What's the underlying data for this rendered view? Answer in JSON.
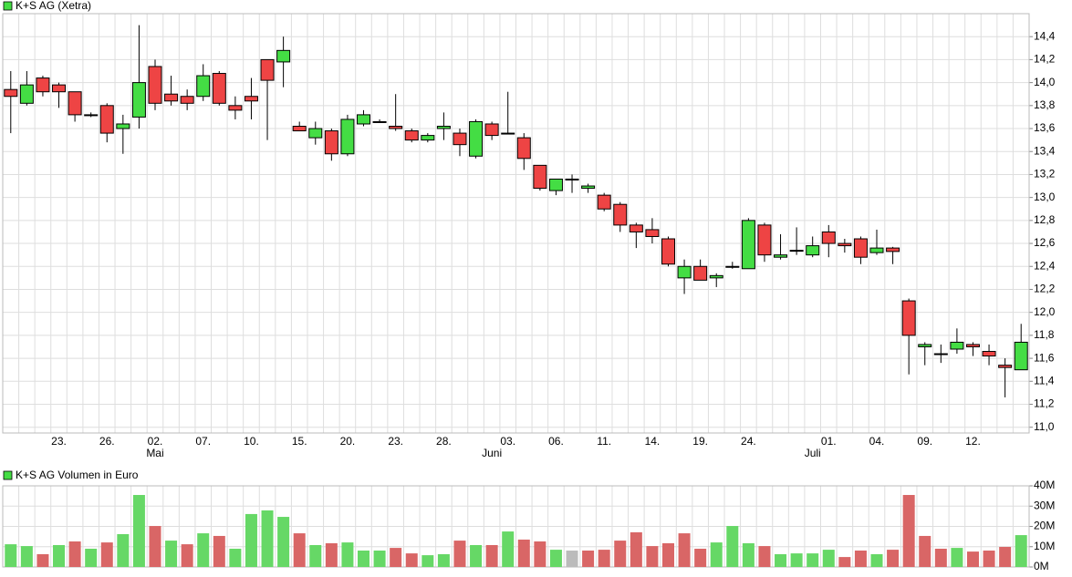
{
  "chart_data": [
    {
      "type": "candlestick",
      "title": "K+S AG (Xetra)",
      "legend_color": "#44dd44",
      "up_color": "#44dd44",
      "down_color": "#ee4444",
      "grid": true,
      "categories": [
        null,
        null,
        null,
        "23.",
        null,
        null,
        "26.",
        null,
        null,
        "02.",
        null,
        null,
        "07.",
        null,
        null,
        "10.",
        null,
        null,
        "15.",
        null,
        null,
        "20.",
        null,
        null,
        "23.",
        null,
        null,
        "28.",
        null,
        null,
        null,
        "03.",
        null,
        null,
        "06.",
        null,
        null,
        "11.",
        null,
        null,
        "14.",
        null,
        null,
        "19.",
        null,
        null,
        "24.",
        null,
        null,
        null,
        null,
        "01.",
        null,
        null,
        "04.",
        null,
        null,
        "09.",
        null,
        null,
        "12.",
        null,
        null,
        null
      ],
      "category_months": [
        null,
        null,
        null,
        null,
        null,
        null,
        null,
        null,
        null,
        "Mai",
        null,
        null,
        null,
        null,
        null,
        null,
        null,
        null,
        null,
        null,
        null,
        null,
        null,
        null,
        null,
        null,
        null,
        null,
        null,
        null,
        "Juni",
        null,
        null,
        null,
        null,
        null,
        null,
        null,
        null,
        null,
        null,
        null,
        null,
        null,
        null,
        null,
        null,
        null,
        null,
        null,
        "Juli",
        null,
        null,
        null,
        null,
        null,
        null,
        null,
        null,
        null,
        null,
        null,
        null,
        null
      ],
      "open": [
        13.94,
        13.82,
        14.04,
        13.98,
        13.92,
        13.72,
        13.8,
        13.6,
        13.7,
        14.14,
        13.9,
        13.88,
        13.88,
        14.08,
        13.8,
        13.88,
        14.2,
        14.18,
        13.62,
        13.52,
        13.58,
        13.38,
        13.64,
        13.66,
        13.62,
        13.58,
        13.5,
        13.6,
        13.56,
        13.36,
        13.64,
        13.56,
        13.52,
        13.28,
        13.06,
        13.16,
        13.08,
        13.02,
        12.94,
        12.76,
        12.72,
        12.64,
        12.3,
        12.4,
        12.3,
        12.4,
        12.38,
        12.76,
        12.48,
        12.54,
        12.5,
        12.7,
        12.6,
        12.64,
        12.52,
        12.56,
        12.1,
        11.7,
        11.64,
        11.68,
        11.72,
        11.66,
        11.54,
        11.5
      ],
      "high": [
        14.1,
        14.1,
        14.06,
        14.0,
        13.92,
        13.74,
        13.82,
        13.72,
        14.5,
        14.2,
        14.06,
        13.94,
        14.16,
        14.1,
        13.88,
        14.04,
        14.2,
        14.4,
        13.66,
        13.66,
        13.6,
        13.72,
        13.76,
        13.68,
        13.9,
        13.6,
        13.56,
        13.74,
        13.6,
        13.68,
        13.66,
        13.92,
        13.56,
        13.28,
        13.16,
        13.2,
        13.12,
        13.04,
        12.96,
        12.78,
        12.82,
        12.66,
        12.46,
        12.46,
        12.34,
        12.44,
        12.82,
        12.78,
        12.68,
        12.74,
        12.66,
        12.76,
        12.64,
        12.66,
        12.72,
        12.57,
        12.12,
        11.74,
        11.72,
        11.86,
        11.74,
        11.72,
        11.6,
        11.9
      ],
      "low": [
        13.56,
        13.8,
        13.88,
        13.78,
        13.66,
        13.7,
        13.48,
        13.38,
        13.6,
        13.76,
        13.8,
        13.76,
        13.84,
        13.8,
        13.68,
        13.68,
        13.5,
        13.96,
        13.58,
        13.46,
        13.32,
        13.36,
        13.62,
        13.66,
        13.58,
        13.48,
        13.48,
        13.5,
        13.36,
        13.34,
        13.5,
        13.56,
        13.24,
        13.06,
        13.02,
        13.04,
        13.04,
        12.88,
        12.7,
        12.56,
        12.6,
        12.4,
        12.16,
        12.28,
        12.22,
        12.38,
        12.38,
        12.44,
        12.46,
        12.5,
        12.48,
        12.48,
        12.52,
        12.42,
        12.5,
        12.42,
        11.46,
        11.54,
        11.56,
        11.64,
        11.62,
        11.54,
        11.26,
        11.5
      ],
      "close": [
        13.88,
        13.98,
        13.92,
        13.92,
        13.72,
        13.72,
        13.56,
        13.64,
        14.0,
        13.82,
        13.84,
        13.82,
        14.06,
        13.82,
        13.76,
        13.84,
        14.02,
        14.28,
        13.58,
        13.6,
        13.38,
        13.68,
        13.72,
        13.66,
        13.6,
        13.5,
        13.54,
        13.62,
        13.46,
        13.66,
        13.54,
        13.56,
        13.34,
        13.08,
        13.16,
        13.16,
        13.1,
        12.9,
        12.76,
        12.7,
        12.66,
        12.42,
        12.4,
        12.28,
        12.32,
        12.4,
        12.8,
        12.5,
        12.5,
        12.54,
        12.58,
        12.6,
        12.58,
        12.48,
        12.56,
        12.53,
        11.8,
        11.72,
        11.64,
        11.74,
        11.7,
        11.62,
        11.52,
        11.74
      ],
      "ylim": [
        10.95,
        14.6
      ],
      "yticks": [
        {
          "value": 11.0,
          "label": "11,0"
        },
        {
          "value": 11.2,
          "label": "11,2"
        },
        {
          "value": 11.4,
          "label": "11,4"
        },
        {
          "value": 11.6,
          "label": "11,6"
        },
        {
          "value": 11.8,
          "label": "11,8"
        },
        {
          "value": 12.0,
          "label": "12,0"
        },
        {
          "value": 12.2,
          "label": "12,2"
        },
        {
          "value": 12.4,
          "label": "12,4"
        },
        {
          "value": 12.6,
          "label": "12,6"
        },
        {
          "value": 12.8,
          "label": "12,8"
        },
        {
          "value": 13.0,
          "label": "13,0"
        },
        {
          "value": 13.2,
          "label": "13,2"
        },
        {
          "value": 13.4,
          "label": "13,4"
        },
        {
          "value": 13.6,
          "label": "13,6"
        },
        {
          "value": 13.8,
          "label": "13,8"
        },
        {
          "value": 14.0,
          "label": "14,0"
        },
        {
          "value": 14.2,
          "label": "14,2"
        },
        {
          "value": 14.4,
          "label": "14,4"
        }
      ]
    },
    {
      "type": "bar",
      "title": "K+S AG Volumen in Euro",
      "legend_color": "#44dd44",
      "grid": true,
      "values": [
        11.2,
        10.3,
        6.3,
        10.8,
        12.6,
        9.0,
        12.1,
        16.2,
        35.5,
        20.2,
        13.0,
        11.2,
        16.6,
        15.3,
        9.0,
        26.1,
        27.9,
        24.7,
        16.6,
        10.8,
        11.7,
        12.1,
        8.1,
        8.1,
        9.4,
        6.7,
        5.8,
        6.3,
        13.0,
        10.8,
        10.8,
        17.5,
        13.5,
        12.6,
        8.5,
        8.1,
        8.1,
        8.5,
        13.0,
        17.1,
        10.3,
        11.7,
        16.6,
        9.0,
        12.1,
        20.2,
        11.7,
        10.3,
        6.3,
        6.7,
        6.7,
        8.5,
        4.9,
        8.1,
        6.3,
        8.5,
        35.5,
        15.3,
        9.0,
        9.4,
        7.6,
        8.1,
        9.9,
        15.7
      ],
      "colors": [
        "#66d866",
        "#66d866",
        "#d96666",
        "#66d866",
        "#d96666",
        "#66d866",
        "#d96666",
        "#66d866",
        "#66d866",
        "#d96666",
        "#66d866",
        "#d96666",
        "#66d866",
        "#d96666",
        "#66d866",
        "#66d866",
        "#66d866",
        "#66d866",
        "#d96666",
        "#66d866",
        "#d96666",
        "#66d866",
        "#66d866",
        "#66d866",
        "#d96666",
        "#d96666",
        "#66d866",
        "#66d866",
        "#d96666",
        "#66d866",
        "#d96666",
        "#66d866",
        "#d96666",
        "#d96666",
        "#66d866",
        "#bbbbbb",
        "#d96666",
        "#d96666",
        "#d96666",
        "#d96666",
        "#d96666",
        "#d96666",
        "#d96666",
        "#d96666",
        "#66d866",
        "#66d866",
        "#66d866",
        "#d96666",
        "#66d866",
        "#66d866",
        "#66d866",
        "#66d866",
        "#d96666",
        "#d96666",
        "#66d866",
        "#d96666",
        "#d96666",
        "#d96666",
        "#d96666",
        "#66d866",
        "#d96666",
        "#d96666",
        "#d96666",
        "#66d866"
      ],
      "ylim": [
        0,
        40
      ],
      "yticks": [
        {
          "value": 0,
          "label": "0M"
        },
        {
          "value": 10,
          "label": "10M"
        },
        {
          "value": 20,
          "label": "20M"
        },
        {
          "value": 30,
          "label": "30M"
        },
        {
          "value": 40,
          "label": "40M"
        }
      ]
    }
  ]
}
